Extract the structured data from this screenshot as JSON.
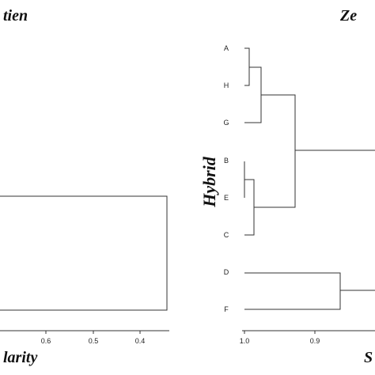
{
  "left_panel": {
    "title_fragment": "tien",
    "xlabel_fragment": "larity",
    "tick_labels": [
      "0.6",
      "0.5",
      "0.4"
    ]
  },
  "right_panel": {
    "title_fragment": "Ze",
    "ylabel": "Hybrid",
    "xlabel_fragment": "S",
    "tick_labels": [
      "1.0",
      "0.9"
    ],
    "leaves": [
      "A",
      "H",
      "G",
      "B",
      "E",
      "C",
      "D",
      "F"
    ]
  },
  "colors": {
    "lines": "#333333",
    "text": "#111111"
  }
}
